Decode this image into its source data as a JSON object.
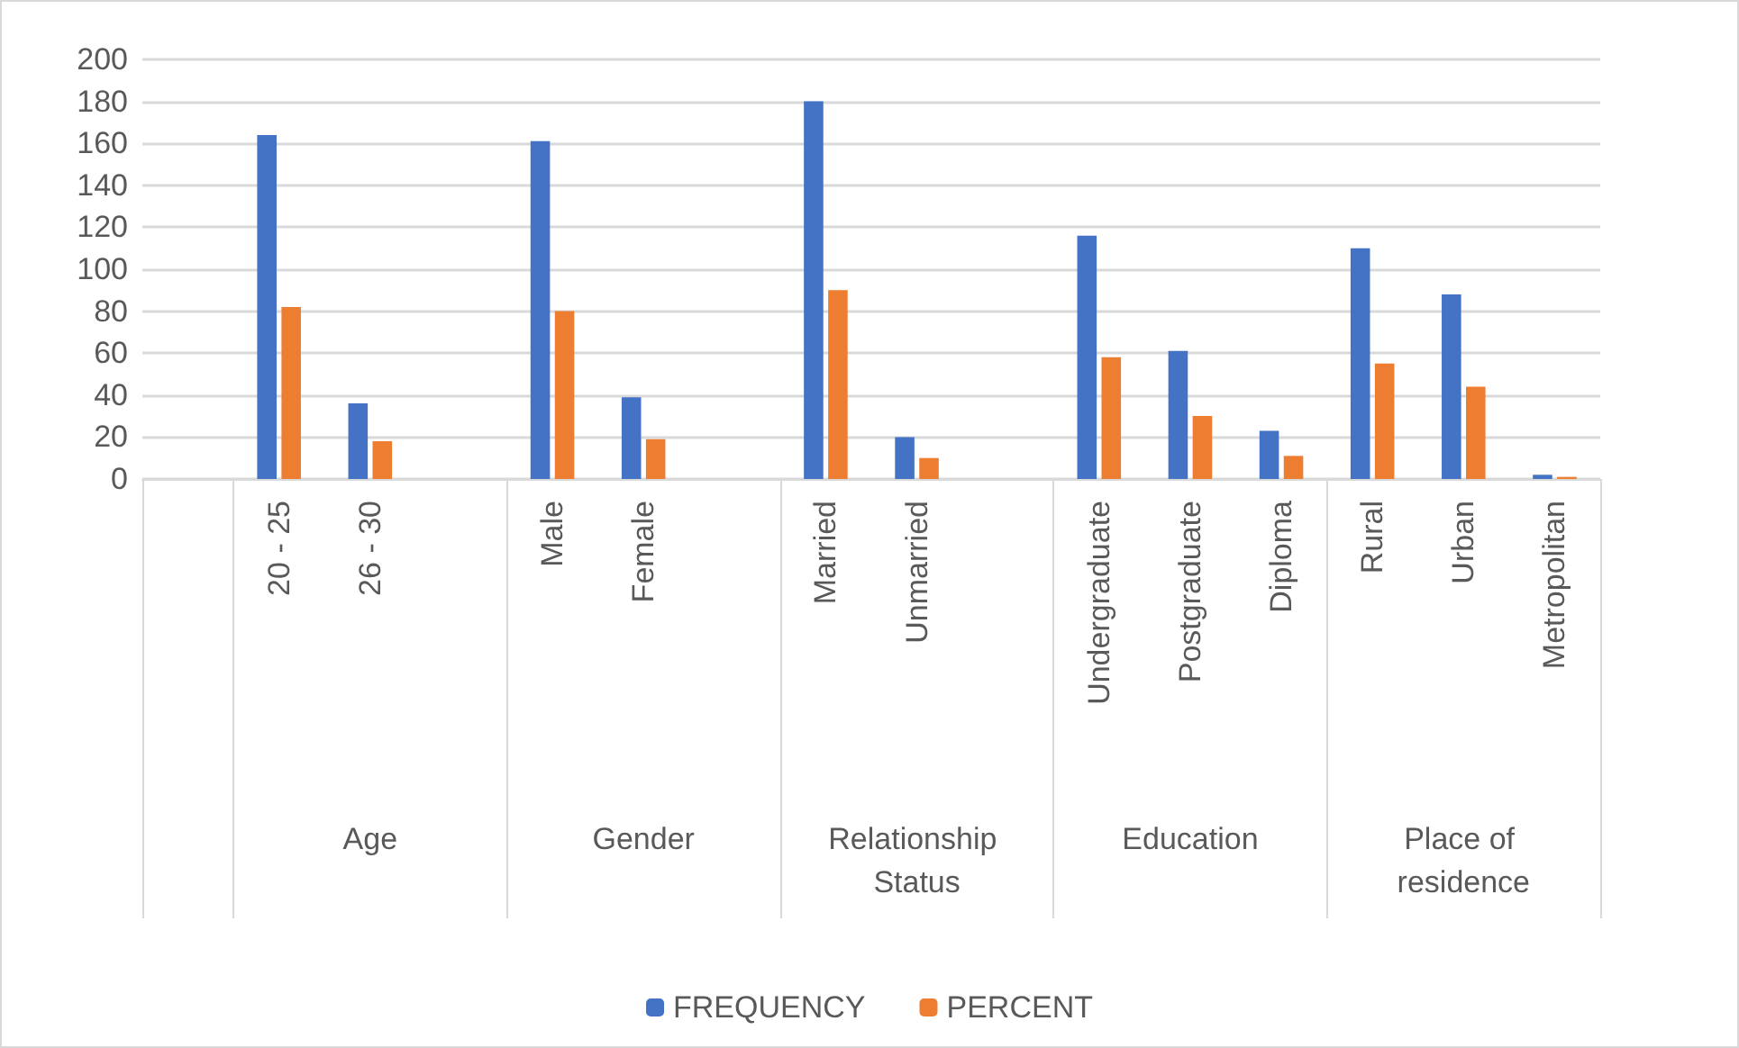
{
  "chart_data": {
    "type": "bar",
    "categories": [
      null,
      "20 - 25",
      "26 - 30",
      null,
      "Male",
      "Female",
      null,
      "Married",
      "Unmarried",
      null,
      "Undergraduate",
      "Postgraduate",
      "Diploma",
      "Rural",
      "Urban",
      "Metropolitan"
    ],
    "series": [
      {
        "name": "FREQUENCY",
        "color": "#4472c4",
        "values": [
          null,
          164,
          36,
          null,
          161,
          39,
          null,
          180,
          20,
          null,
          116,
          61,
          23,
          110,
          88,
          2
        ]
      },
      {
        "name": "PERCENT",
        "color": "#ed7d31",
        "values": [
          null,
          82,
          18,
          null,
          80,
          19,
          null,
          90,
          10,
          null,
          58,
          30,
          11,
          55,
          44,
          1
        ]
      }
    ],
    "annotations": [
      "Age",
      "Gender",
      "Relationship Status",
      "Education",
      "Place of residence"
    ],
    "ylim": [
      0,
      200
    ],
    "yticks": [
      0,
      20,
      40,
      60,
      80,
      100,
      120,
      140,
      160,
      180,
      200
    ],
    "grid": "y",
    "legend": "bottom"
  }
}
